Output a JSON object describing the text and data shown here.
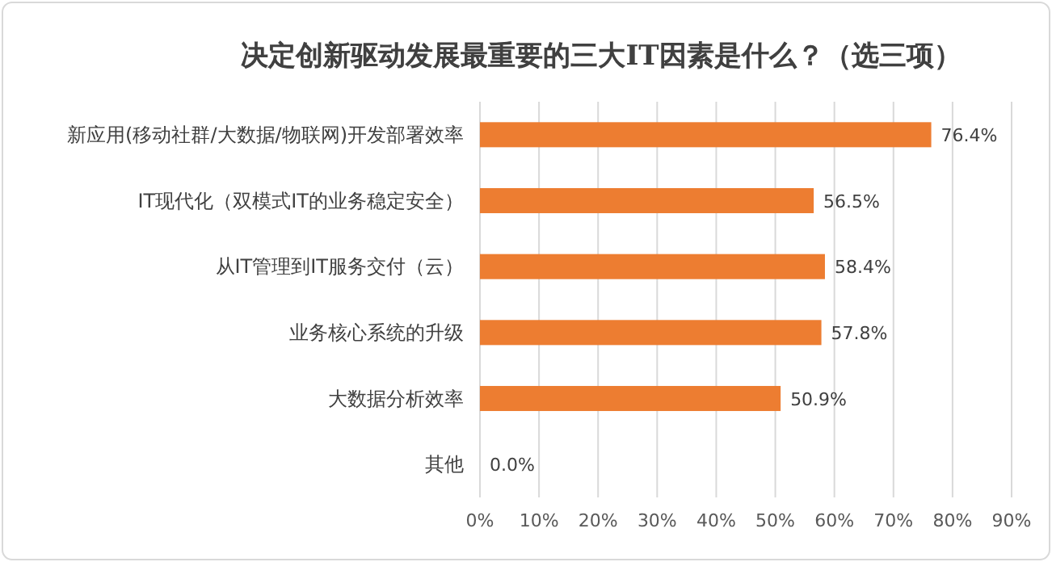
{
  "chart_data": {
    "type": "bar",
    "orientation": "horizontal",
    "title": "决定创新驱动发展最重要的三大IT因素是什么？（选三项）",
    "categories": [
      "新应用(移动社群/大数据/物联网)开发部署效率",
      "IT现代化（双模式IT的业务稳定安全）",
      "从IT管理到IT服务交付（云）",
      "业务核心系统的升级",
      "大数据分析效率",
      "其他"
    ],
    "values": [
      76.4,
      56.5,
      58.4,
      57.8,
      50.9,
      0.0
    ],
    "value_labels": [
      "76.4%",
      "56.5%",
      "58.4%",
      "57.8%",
      "50.9%",
      "0.0%"
    ],
    "color": "#ed7d31",
    "xlim": [
      0,
      90
    ],
    "xticks": [
      {
        "value": 0,
        "label": "0%"
      },
      {
        "value": 10,
        "label": "10%"
      },
      {
        "value": 20,
        "label": "20%"
      },
      {
        "value": 30,
        "label": "30%"
      },
      {
        "value": 40,
        "label": "40%"
      },
      {
        "value": 50,
        "label": "50%"
      },
      {
        "value": 60,
        "label": "60%"
      },
      {
        "value": 70,
        "label": "70%"
      },
      {
        "value": 80,
        "label": "80%"
      },
      {
        "value": 90,
        "label": "90%"
      }
    ],
    "grid": "x"
  }
}
